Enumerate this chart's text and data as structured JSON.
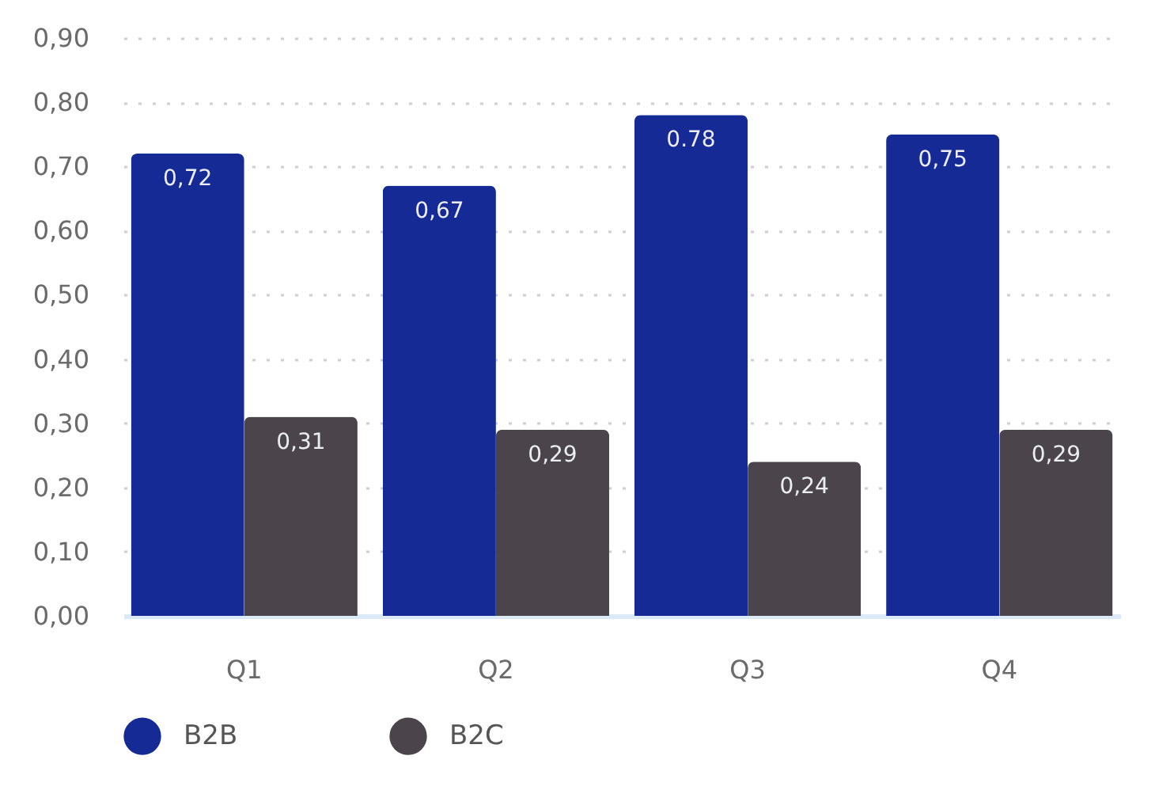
{
  "chart_data": {
    "type": "bar",
    "categories": [
      "Q1",
      "Q2",
      "Q3",
      "Q4"
    ],
    "series": [
      {
        "name": "B2B",
        "color": "#152a94",
        "values": [
          0.72,
          0.67,
          0.78,
          0.75
        ],
        "value_labels": [
          "0,72",
          "0,67",
          "0.78",
          "0,75"
        ]
      },
      {
        "name": "B2C",
        "color": "#4b454b",
        "values": [
          0.31,
          0.29,
          0.24,
          0.29
        ],
        "value_labels": [
          "0,31",
          "0,29",
          "0,24",
          "0,29"
        ]
      }
    ],
    "ylim": [
      0,
      0.9
    ],
    "yticks": [
      {
        "value": 0,
        "label": "0,00"
      },
      {
        "value": 0.1,
        "label": "0,10"
      },
      {
        "value": 0.2,
        "label": "0,20"
      },
      {
        "value": 0.3,
        "label": "0,30"
      },
      {
        "value": 0.4,
        "label": "0,40"
      },
      {
        "value": 0.5,
        "label": "0,50"
      },
      {
        "value": 0.6,
        "label": "0,60"
      },
      {
        "value": 0.7,
        "label": "0,70"
      },
      {
        "value": 0.8,
        "label": "0,80"
      },
      {
        "value": 0.9,
        "label": "0,90"
      }
    ],
    "grid": "y",
    "legend": "bottom"
  }
}
